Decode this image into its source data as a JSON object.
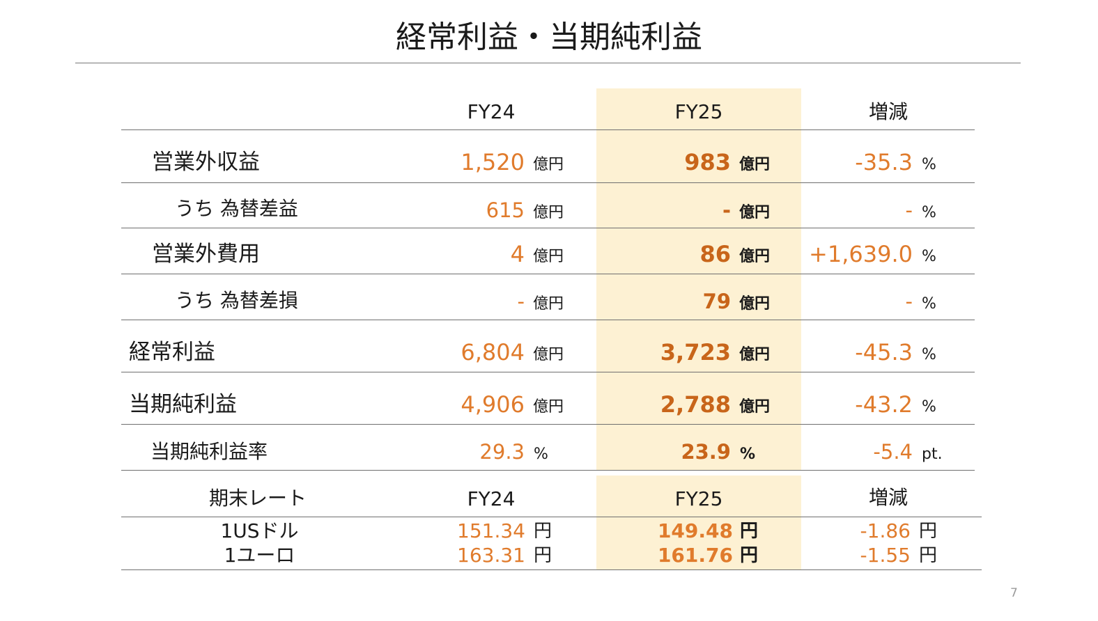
{
  "title": "経常利益・当期純利益",
  "header": {
    "col1": "FY24",
    "col2": "FY25",
    "col3": "増減"
  },
  "rows": [
    {
      "label": "営業外収益",
      "fy24": "1,520",
      "fy24_unit": "億円",
      "fy25": "983",
      "fy25_unit": "億円",
      "change": "-35.3",
      "change_unit": "%"
    },
    {
      "label": "うち 為替差益",
      "fy24": "615",
      "fy24_unit": "億円",
      "fy25": "-",
      "fy25_unit": "億円",
      "change": "-",
      "change_unit": "%"
    },
    {
      "label": "営業外費用",
      "fy24": "4",
      "fy24_unit": "億円",
      "fy25": "86",
      "fy25_unit": "億円",
      "change": "+1,639.0",
      "change_unit": "%"
    },
    {
      "label": "うち 為替差損",
      "fy24": "-",
      "fy24_unit": "億円",
      "fy25": "79",
      "fy25_unit": "億円",
      "change": "-",
      "change_unit": "%"
    },
    {
      "label": "経常利益",
      "fy24": "6,804",
      "fy24_unit": "億円",
      "fy25": "3,723",
      "fy25_unit": "億円",
      "change": "-45.3",
      "change_unit": "%"
    },
    {
      "label": "当期純利益",
      "fy24": "4,906",
      "fy24_unit": "億円",
      "fy25": "2,788",
      "fy25_unit": "億円",
      "change": "-43.2",
      "change_unit": "%"
    },
    {
      "label": "当期純利益率",
      "fy24": "29.3",
      "fy24_unit": "%",
      "fy25": "23.9",
      "fy25_unit": "%",
      "change": "-5.4",
      "change_unit": "pt."
    }
  ],
  "fx": {
    "header": {
      "label": "期末レート",
      "col1": "FY24",
      "col2": "FY25",
      "col3": "増減"
    },
    "rows": [
      {
        "label": "1USドル",
        "fy24": "151.34",
        "fy25": "149.48",
        "change": "-1.86",
        "unit": "円"
      },
      {
        "label": "1ユーロ",
        "fy24": "163.31",
        "fy25": "161.76",
        "change": "-1.55",
        "unit": "円"
      }
    ]
  },
  "page_number": "7",
  "colors": {
    "highlight": "#fdf1d3",
    "value_orange": "#e07b2c",
    "bold_orange": "#c8651a"
  }
}
